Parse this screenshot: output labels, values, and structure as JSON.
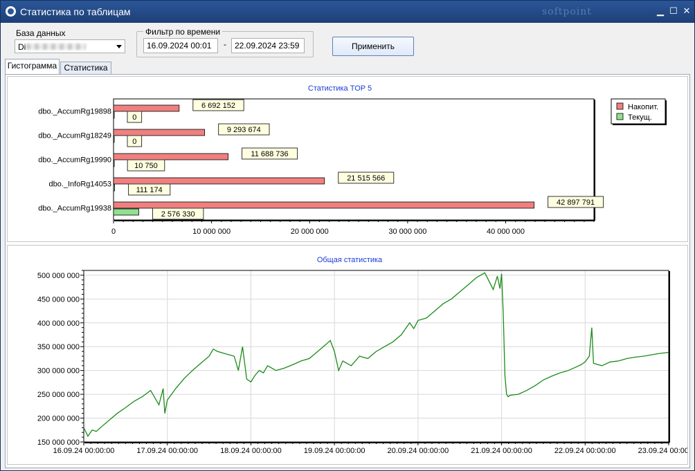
{
  "window": {
    "title": "Статистика по таблицам",
    "brand": "softpoint",
    "min_glyph": "▁",
    "max_glyph": "☐",
    "close_glyph": "✕"
  },
  "toolbar": {
    "db_label": "База данных",
    "db_value": "Di",
    "filter_label": "Фильтр по времени",
    "date_from": "16.09.2024 00:01",
    "date_sep": "-",
    "date_to": "22.09.2024 23:59",
    "apply_label": "Применить"
  },
  "tabs": [
    {
      "label": "Гистограмма",
      "active": true
    },
    {
      "label": "Статистика",
      "active": false
    }
  ],
  "colors": {
    "accum": "#f08080",
    "current": "#8fe08f",
    "line": "#1a8a1a",
    "title": "#1a3ad8"
  },
  "chart_data": [
    {
      "type": "bar",
      "title": "Статистика TOP 5",
      "categories": [
        "dbo._AccumRg19898",
        "dbo._AccumRg18249",
        "dbo._AccumRg19990",
        "dbo._InfoRg14053",
        "dbo._AccumRg19938"
      ],
      "series": [
        {
          "name": "Накопит.",
          "values": [
            6692152,
            9293674,
            11688736,
            21515566,
            42897791
          ],
          "labels": [
            "6 692 152",
            "9 293 674",
            "11 688 736",
            "21 515 566",
            "42 897 791"
          ]
        },
        {
          "name": "Текущ.",
          "values": [
            0,
            0,
            10750,
            111174,
            2576330
          ],
          "labels": [
            "0",
            "0",
            "10 750",
            "111 174",
            "2 576 330"
          ]
        }
      ],
      "xlim": [
        0,
        49000000
      ],
      "xticks": [
        0,
        10000000,
        20000000,
        30000000,
        40000000
      ],
      "xtick_labels": [
        "0",
        "10 000 000",
        "20 000 000",
        "30 000 000",
        "40 000 000"
      ],
      "legend": "top-right",
      "grid": false
    },
    {
      "type": "line",
      "title": "Общая статистика",
      "ylim": [
        150000000,
        510000000
      ],
      "yticks": [
        150000000,
        200000000,
        250000000,
        300000000,
        350000000,
        400000000,
        450000000,
        500000000
      ],
      "ytick_labels": [
        "150 000 000",
        "200 000 000",
        "250 000 000",
        "300 000 000",
        "350 000 000",
        "400 000 000",
        "450 000 000",
        "500 000 000"
      ],
      "xlim": [
        "16.09.24 00:00:00",
        "23.09.24 00:00:00"
      ],
      "xtick_labels": [
        "16.09.24 00:00:00",
        "17.09.24 00:00:00",
        "18.09.24 00:00:00",
        "19.09.24 00:00:00",
        "20.09.24 00:00:00",
        "21.09.24 00:00:00",
        "22.09.24 00:00:00",
        "23.09.24 00:00:00"
      ],
      "grid": true,
      "x_days": [
        0,
        0.05,
        0.1,
        0.15,
        0.2,
        0.3,
        0.4,
        0.5,
        0.6,
        0.7,
        0.8,
        0.9,
        0.95,
        0.97,
        1.0,
        1.05,
        1.1,
        1.2,
        1.3,
        1.4,
        1.5,
        1.55,
        1.6,
        1.7,
        1.8,
        1.85,
        1.9,
        1.95,
        2.0,
        2.05,
        2.1,
        2.15,
        2.2,
        2.3,
        2.4,
        2.5,
        2.6,
        2.7,
        2.8,
        2.9,
        2.95,
        3.0,
        3.05,
        3.1,
        3.2,
        3.3,
        3.4,
        3.5,
        3.6,
        3.7,
        3.8,
        3.9,
        3.95,
        4.0,
        4.1,
        4.2,
        4.3,
        4.4,
        4.5,
        4.6,
        4.7,
        4.8,
        4.9,
        4.95,
        4.98,
        5.0,
        5.02,
        5.04,
        5.06,
        5.08,
        5.1,
        5.2,
        5.3,
        5.4,
        5.5,
        5.6,
        5.7,
        5.8,
        5.9,
        5.95,
        6.0,
        6.05,
        6.08,
        6.1,
        6.2,
        6.3,
        6.4,
        6.5,
        6.6,
        6.7,
        6.8,
        6.9,
        7.0
      ],
      "values": [
        180000000,
        162000000,
        175000000,
        172000000,
        180000000,
        195000000,
        210000000,
        222000000,
        235000000,
        245000000,
        258000000,
        228000000,
        262000000,
        210000000,
        238000000,
        250000000,
        262000000,
        283000000,
        300000000,
        315000000,
        330000000,
        345000000,
        340000000,
        335000000,
        330000000,
        300000000,
        350000000,
        282000000,
        276000000,
        290000000,
        300000000,
        295000000,
        310000000,
        300000000,
        305000000,
        312000000,
        320000000,
        325000000,
        340000000,
        355000000,
        363000000,
        340000000,
        300000000,
        320000000,
        310000000,
        330000000,
        325000000,
        340000000,
        350000000,
        360000000,
        375000000,
        400000000,
        388000000,
        405000000,
        410000000,
        425000000,
        440000000,
        450000000,
        465000000,
        480000000,
        495000000,
        505000000,
        470000000,
        498000000,
        472000000,
        503000000,
        420000000,
        290000000,
        250000000,
        245000000,
        248000000,
        250000000,
        258000000,
        268000000,
        280000000,
        288000000,
        295000000,
        300000000,
        308000000,
        312000000,
        318000000,
        330000000,
        390000000,
        315000000,
        310000000,
        318000000,
        320000000,
        325000000,
        328000000,
        330000000,
        333000000,
        336000000,
        338000000
      ]
    }
  ]
}
